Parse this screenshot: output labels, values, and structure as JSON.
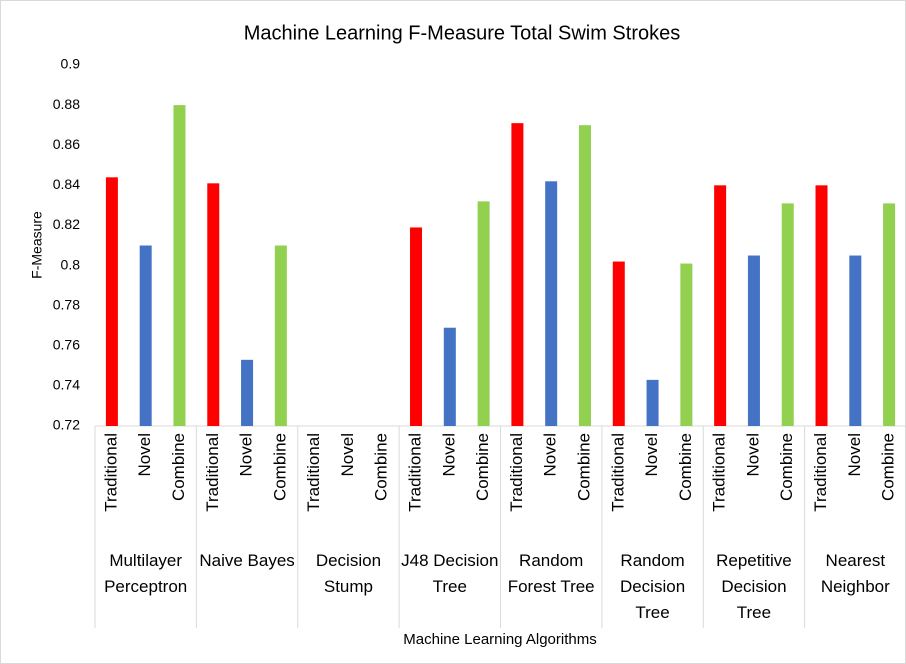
{
  "chart_data": {
    "type": "bar",
    "title": "Machine Learning F-Measure Total Swim Strokes",
    "x_label": "Machine Learning Algorithms",
    "y_label": "F-Measure",
    "categories": [
      "Multilayer Perceptron",
      "Naive Bayes",
      "Decision Stump",
      "J48 Decision Tree",
      "Random Forest Tree",
      "Random Decision Tree",
      "Repetitive Decision Tree",
      "Nearest Neighbor"
    ],
    "series": [
      {
        "name": "Traditional",
        "color": "#ff0000",
        "values": [
          0.844,
          0.841,
          null,
          0.819,
          0.871,
          0.802,
          0.84,
          0.84
        ]
      },
      {
        "name": "Novel",
        "color": "#4472c4",
        "values": [
          0.81,
          0.753,
          null,
          0.769,
          0.842,
          0.743,
          0.805,
          0.805
        ]
      },
      {
        "name": "Combine",
        "color": "#92d050",
        "values": [
          0.88,
          0.81,
          null,
          0.832,
          0.87,
          0.801,
          0.831,
          0.831
        ]
      }
    ],
    "ylim": [
      0.72,
      0.9
    ],
    "yticks": [
      0.72,
      0.74,
      0.76,
      0.78,
      0.8,
      0.82,
      0.84,
      0.86,
      0.88,
      0.9
    ],
    "grid": false
  }
}
